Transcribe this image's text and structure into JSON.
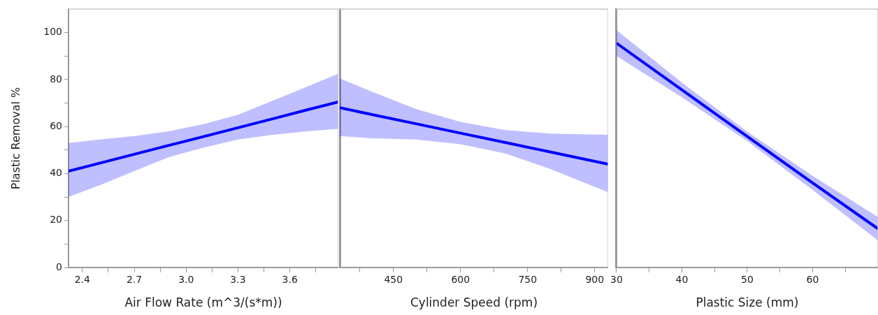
{
  "chart_data": [
    {
      "type": "line",
      "ylabel": "Plastic Removal %",
      "xlabel": "Air Flow Rate (m^3/(s*m))",
      "grid": false,
      "legend": false,
      "marker": "none",
      "line_style": "solid",
      "x": [
        2.32,
        2.5,
        2.7,
        2.9,
        3.1,
        3.3,
        3.5,
        3.7,
        3.88
      ],
      "xlim": [
        2.32,
        3.88
      ],
      "xticks": [
        2.4,
        {
          "value": 2.55,
          "label": null
        },
        2.7,
        {
          "value": 2.85,
          "label": null
        },
        {
          "value": 3.0,
          "label": "3.0"
        },
        {
          "value": 3.15,
          "label": null
        },
        3.3,
        {
          "value": 3.45,
          "label": null
        },
        3.6,
        {
          "value": 3.75,
          "label": null
        }
      ],
      "ylim": [
        0,
        110
      ],
      "yticks": [
        0,
        {
          "value": 10,
          "label": null
        },
        20,
        {
          "value": 30,
          "label": null
        },
        40,
        {
          "value": 50,
          "label": null
        },
        60,
        {
          "value": 70,
          "label": null
        },
        80,
        {
          "value": 90,
          "label": null
        },
        100
      ],
      "series": [
        {
          "color": "#0000ff",
          "values": [
            41,
            44.4,
            48.2,
            52,
            55.7,
            59.5,
            63.3,
            67.1,
            70.5
          ],
          "lower": [
            30,
            35,
            41,
            47,
            51,
            54.5,
            56.5,
            58,
            59
          ],
          "upper": [
            53,
            54.5,
            56,
            58,
            61,
            65,
            71,
            77,
            82.5
          ]
        }
      ]
    },
    {
      "type": "line",
      "xlabel": "Cylinder Speed (rpm)",
      "grid": false,
      "legend": false,
      "marker": "none",
      "line_style": "solid",
      "tick_labels": "x",
      "x": [
        330,
        400,
        500,
        600,
        700,
        800,
        930
      ],
      "xlim": [
        330,
        930
      ],
      "xticks": [
        {
          "value": 375,
          "label": null
        },
        450,
        {
          "value": 525,
          "label": null
        },
        600,
        {
          "value": 675,
          "label": null
        },
        750,
        {
          "value": 825,
          "label": null
        },
        900
      ],
      "ylim": [
        0,
        110
      ],
      "series": [
        {
          "color": "#0000ff",
          "values": [
            68,
            65.2,
            61.2,
            57.2,
            53.2,
            49.2,
            44
          ],
          "lower": [
            56,
            55,
            54.5,
            52.5,
            48.5,
            42,
            32
          ],
          "upper": [
            80.5,
            75,
            67.5,
            62,
            58.5,
            57,
            56.5
          ]
        }
      ]
    },
    {
      "type": "line",
      "xlabel": "Plastic Size (mm)",
      "grid": false,
      "legend": false,
      "marker": "none",
      "line_style": "solid",
      "tick_labels": "x",
      "x": [
        30,
        40,
        50,
        60,
        70
      ],
      "xlim": [
        30,
        70
      ],
      "xticks": [
        30,
        {
          "value": 35,
          "label": null
        },
        40,
        {
          "value": 45,
          "label": null
        },
        50,
        {
          "value": 55,
          "label": null
        },
        60,
        {
          "value": 65,
          "label": null
        }
      ],
      "ylim": [
        0,
        110
      ],
      "series": [
        {
          "color": "#0000ff",
          "values": [
            95.5,
            75.6,
            55.8,
            36,
            16.5
          ],
          "lower": [
            90,
            72.5,
            53.8,
            33,
            11.5
          ],
          "upper": [
            101,
            78.7,
            57.8,
            39,
            21.5
          ]
        }
      ]
    }
  ]
}
